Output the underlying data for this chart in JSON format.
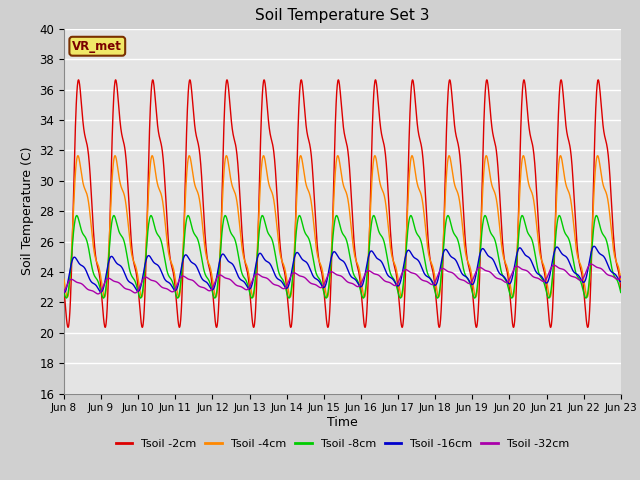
{
  "title": "Soil Temperature Set 3",
  "xlabel": "Time",
  "ylabel": "Soil Temperature (C)",
  "ylim": [
    16,
    40
  ],
  "background_color": "#d0d0d0",
  "plot_bg_color": "#e4e4e4",
  "grid_color": "#ffffff",
  "annotation_text": "VR_met",
  "annotation_bg": "#f0e868",
  "annotation_border": "#7a3000",
  "series_names": [
    "Tsoil -2cm",
    "Tsoil -4cm",
    "Tsoil -8cm",
    "Tsoil -16cm",
    "Tsoil -32cm"
  ],
  "series_colors": [
    "#dd0000",
    "#ff8800",
    "#00cc00",
    "#0000cc",
    "#aa00aa"
  ],
  "n_points": 2000,
  "period_days": 1.0,
  "tick_days": [
    0,
    1,
    2,
    3,
    4,
    5,
    6,
    7,
    8,
    9,
    10,
    11,
    12,
    13,
    14,
    15
  ],
  "tick_labels": [
    "Jun 8",
    "Jun 9",
    "Jun 10",
    "Jun 11",
    "Jun 12",
    "Jun 13",
    "Jun 14",
    "Jun 15",
    "Jun 16",
    "Jun 17",
    "Jun 18",
    "Jun 19",
    "Jun 20",
    "Jun 21",
    "Jun 22",
    "Jun 23"
  ]
}
